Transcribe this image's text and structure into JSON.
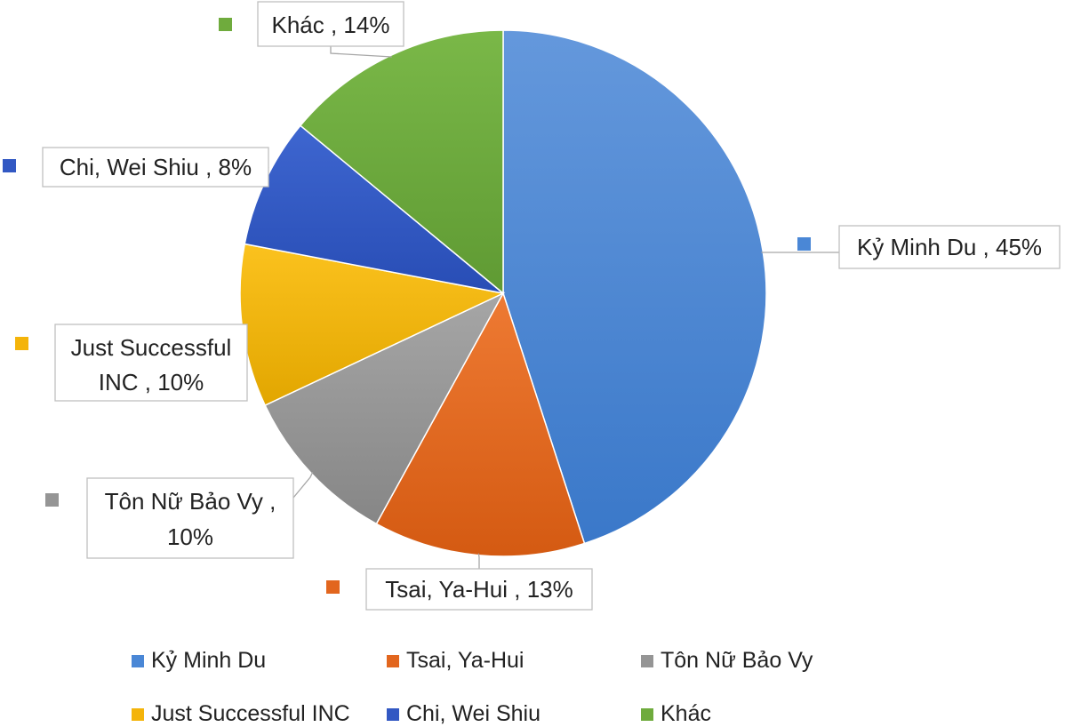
{
  "chart_data": {
    "type": "pie",
    "title": "",
    "slices": [
      {
        "label": "Kỷ Minh Du",
        "value": 45,
        "color": "#4a87d6",
        "data_label": "Kỷ Minh Du , 45%"
      },
      {
        "label": "Tsai, Ya-Hui",
        "value": 13,
        "color": "#e2661e",
        "data_label": "Tsai, Ya-Hui , 13%"
      },
      {
        "label": "Tôn Nữ Bảo Vy",
        "value": 10,
        "color": "#959595",
        "data_label_lines": [
          "Tôn Nữ Bảo Vy ,",
          "10%"
        ]
      },
      {
        "label": "Just Successful INC",
        "value": 10,
        "color": "#f4b40a",
        "data_label_lines": [
          "Just Successful",
          "INC , 10%"
        ]
      },
      {
        "label": "Chi, Wei Shiu",
        "value": 8,
        "color": "#3258c3",
        "data_label": "Chi, Wei Shiu , 8%"
      },
      {
        "label": "Khác",
        "value": 14,
        "color": "#6fab3d",
        "data_label": "Khác , 14%"
      }
    ],
    "legend_position": "bottom",
    "legend": [
      "Kỷ Minh Du",
      "Tsai, Ya-Hui",
      "Tôn Nữ Bảo Vy",
      "Just Successful INC",
      "Chi, Wei Shiu",
      "Khác"
    ]
  }
}
